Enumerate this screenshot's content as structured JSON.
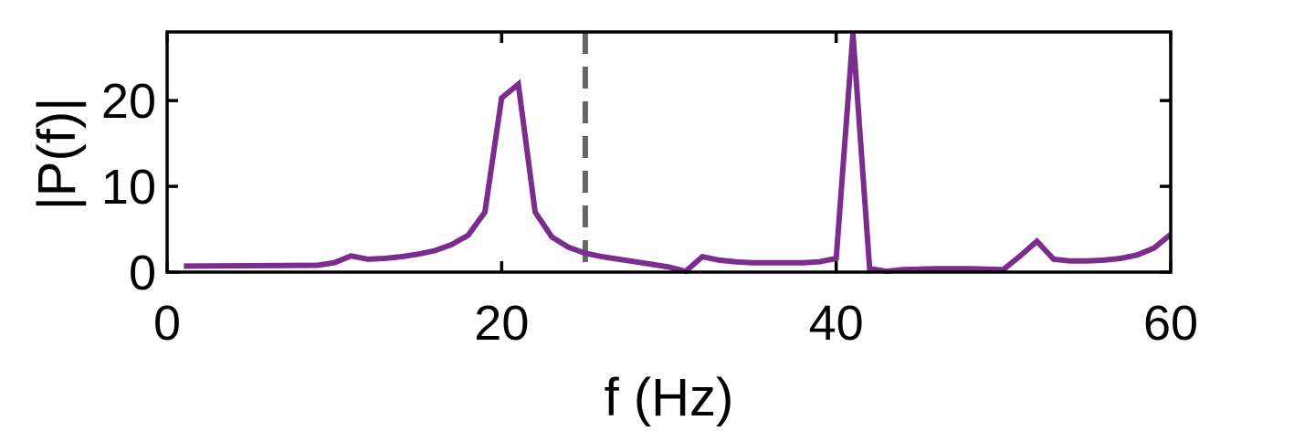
{
  "chart_data": {
    "type": "line",
    "title": "",
    "xlabel": "f (Hz)",
    "ylabel": "|P(f)|",
    "xlim": [
      0,
      60
    ],
    "ylim": [
      0,
      28
    ],
    "xticks": [
      0,
      20,
      40,
      60
    ],
    "yticks": [
      0,
      10,
      20
    ],
    "grid": false,
    "reference_line": {
      "x": 25,
      "style": "dashed",
      "color": "#666666"
    },
    "series": [
      {
        "color": "#7B2D8E",
        "x": [
          1,
          9,
          10,
          11,
          12,
          13,
          14,
          15,
          16,
          17,
          18,
          19,
          20,
          21,
          22,
          23,
          24,
          25,
          26,
          27,
          28,
          29,
          30,
          31,
          32,
          33,
          34,
          35,
          36,
          37,
          38,
          39,
          40,
          41,
          42,
          43,
          44,
          45,
          46,
          47,
          48,
          49,
          50,
          51,
          52,
          53,
          54,
          55,
          56,
          57,
          58,
          59,
          60
        ],
        "values": [
          0.7,
          0.8,
          1.1,
          1.9,
          1.5,
          1.6,
          1.8,
          2.1,
          2.5,
          3.2,
          4.3,
          7.0,
          20.3,
          21.9,
          7.0,
          4.1,
          2.9,
          2.2,
          1.8,
          1.5,
          1.2,
          0.9,
          0.6,
          0.1,
          1.8,
          1.4,
          1.2,
          1.1,
          1.1,
          1.1,
          1.1,
          1.2,
          1.6,
          27.8,
          0.4,
          0.1,
          0.3,
          0.35,
          0.4,
          0.4,
          0.4,
          0.35,
          0.3,
          1.9,
          3.6,
          1.5,
          1.3,
          1.3,
          1.4,
          1.6,
          2.0,
          2.8,
          4.4
        ]
      }
    ]
  }
}
